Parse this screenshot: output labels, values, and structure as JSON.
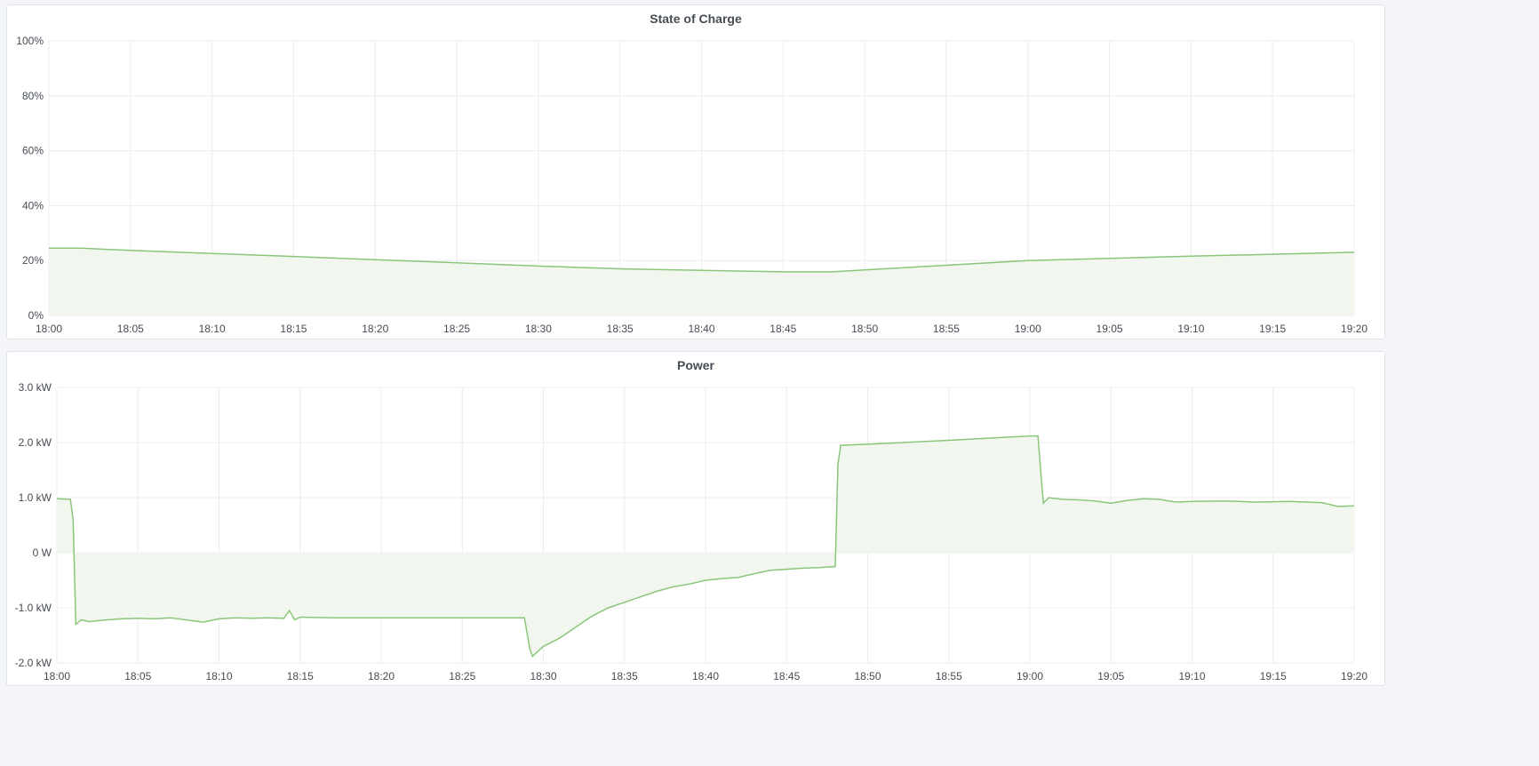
{
  "colors": {
    "line": "#8ac67a",
    "fill": "#f1f7ee",
    "grid": "#ececec"
  },
  "chart_data": [
    {
      "type": "area",
      "title": "State of Charge",
      "x_ticks": [
        "18:00",
        "18:05",
        "18:10",
        "18:15",
        "18:20",
        "18:25",
        "18:30",
        "18:35",
        "18:40",
        "18:45",
        "18:50",
        "18:55",
        "19:00",
        "19:05",
        "19:10",
        "19:15",
        "19:20"
      ],
      "y_ticks": [
        "0%",
        "20%",
        "40%",
        "60%",
        "80%",
        "100%"
      ],
      "ylim": [
        0,
        100
      ],
      "xlim": [
        "18:00",
        "19:20"
      ],
      "grid": true,
      "points": [
        [
          "18:00",
          24.5
        ],
        [
          "18:02",
          24.5
        ],
        [
          "18:05",
          23.7
        ],
        [
          "18:10",
          22.6
        ],
        [
          "18:15",
          21.5
        ],
        [
          "18:20",
          20.3
        ],
        [
          "18:25",
          19.2
        ],
        [
          "18:30",
          18.0
        ],
        [
          "18:35",
          17.0
        ],
        [
          "18:40",
          16.4
        ],
        [
          "18:45",
          15.9
        ],
        [
          "18:48",
          15.9
        ],
        [
          "18:50",
          16.6
        ],
        [
          "18:55",
          18.3
        ],
        [
          "19:00",
          20.0
        ],
        [
          "19:05",
          20.8
        ],
        [
          "19:10",
          21.6
        ],
        [
          "19:15",
          22.3
        ],
        [
          "19:20",
          23.0
        ]
      ]
    },
    {
      "type": "area",
      "title": "Power",
      "x_ticks": [
        "18:00",
        "18:05",
        "18:10",
        "18:15",
        "18:20",
        "18:25",
        "18:30",
        "18:35",
        "18:40",
        "18:45",
        "18:50",
        "18:55",
        "19:00",
        "19:05",
        "19:10",
        "19:15",
        "19:20"
      ],
      "y_ticks": [
        "-2.0 kW",
        "-1.0 kW",
        "0 W",
        "1.0 kW",
        "2.0 kW",
        "3.0 kW"
      ],
      "ylim": [
        -2,
        3
      ],
      "xlim": [
        "18:00",
        "19:20"
      ],
      "grid": true,
      "points": [
        [
          "18:00",
          0.98
        ],
        [
          "18:00:50",
          0.97
        ],
        [
          "18:01:00",
          0.6
        ],
        [
          "18:01:10",
          -1.3
        ],
        [
          "18:01:30",
          -1.22
        ],
        [
          "18:02",
          -1.25
        ],
        [
          "18:03",
          -1.22
        ],
        [
          "18:04",
          -1.2
        ],
        [
          "18:05",
          -1.19
        ],
        [
          "18:06",
          -1.2
        ],
        [
          "18:07",
          -1.18
        ],
        [
          "18:08",
          -1.22
        ],
        [
          "18:09",
          -1.26
        ],
        [
          "18:10",
          -1.2
        ],
        [
          "18:11",
          -1.18
        ],
        [
          "18:12",
          -1.19
        ],
        [
          "18:13",
          -1.18
        ],
        [
          "18:14",
          -1.19
        ],
        [
          "18:14:20",
          -1.05
        ],
        [
          "18:14:40",
          -1.22
        ],
        [
          "18:15",
          -1.17
        ],
        [
          "18:17",
          -1.18
        ],
        [
          "18:20",
          -1.18
        ],
        [
          "18:23",
          -1.18
        ],
        [
          "18:26",
          -1.18
        ],
        [
          "18:28:50",
          -1.18
        ],
        [
          "18:29:10",
          -1.75
        ],
        [
          "18:29:20",
          -1.88
        ],
        [
          "18:30",
          -1.7
        ],
        [
          "18:31",
          -1.55
        ],
        [
          "18:32",
          -1.35
        ],
        [
          "18:33",
          -1.15
        ],
        [
          "18:34",
          -1.0
        ],
        [
          "18:35",
          -0.9
        ],
        [
          "18:36",
          -0.8
        ],
        [
          "18:37",
          -0.7
        ],
        [
          "18:38",
          -0.62
        ],
        [
          "18:39",
          -0.57
        ],
        [
          "18:40",
          -0.5
        ],
        [
          "18:41",
          -0.47
        ],
        [
          "18:42",
          -0.45
        ],
        [
          "18:43",
          -0.38
        ],
        [
          "18:44",
          -0.32
        ],
        [
          "18:45",
          -0.3
        ],
        [
          "18:46",
          -0.28
        ],
        [
          "18:47",
          -0.27
        ],
        [
          "18:48",
          -0.25
        ],
        [
          "18:48:10",
          1.6
        ],
        [
          "18:48:20",
          1.95
        ],
        [
          "18:50",
          1.97
        ],
        [
          "18:55",
          2.04
        ],
        [
          "19:00",
          2.12
        ],
        [
          "19:00:30",
          2.12
        ],
        [
          "19:00:50",
          0.9
        ],
        [
          "19:01:10",
          1.0
        ],
        [
          "19:02",
          0.97
        ],
        [
          "19:03",
          0.96
        ],
        [
          "19:04",
          0.94
        ],
        [
          "19:05",
          0.9
        ],
        [
          "19:06",
          0.95
        ],
        [
          "19:07",
          0.98
        ],
        [
          "19:08",
          0.97
        ],
        [
          "19:09",
          0.92
        ],
        [
          "19:10",
          0.93
        ],
        [
          "19:12",
          0.94
        ],
        [
          "19:14",
          0.92
        ],
        [
          "19:16",
          0.93
        ],
        [
          "19:18",
          0.91
        ],
        [
          "19:19",
          0.84
        ],
        [
          "19:20",
          0.85
        ]
      ]
    }
  ]
}
